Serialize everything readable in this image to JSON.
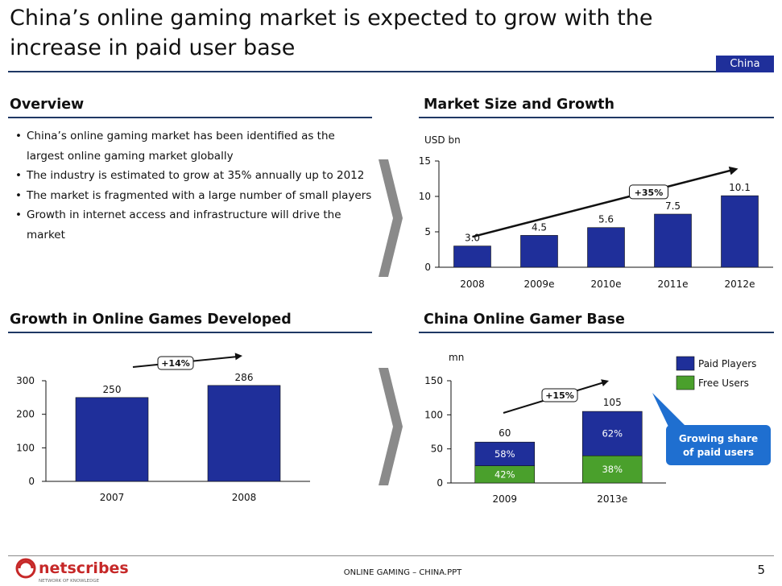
{
  "slide": {
    "title": "China’s online gaming market is expected to grow with the increase in paid user base",
    "region_tag": "China",
    "page_number": "5",
    "footer_text": "ONLINE GAMING –  CHINA.PPT",
    "logo_text": "netscribes",
    "logo_tagline": "NETWORK OF KNOWLEDGE"
  },
  "overview": {
    "heading": "Overview",
    "bullets": [
      "China’s online gaming market has been identified as the largest online gaming market globally",
      "The industry is estimated to grow at 35% annually up to 2012",
      "The market is fragmented with a large number of small players",
      "Growth in internet access and infrastructure will drive the market"
    ]
  },
  "headings": {
    "market_size": "Market Size and Growth",
    "games_developed": "Growth in Online Games Developed",
    "gamer_base": "China Online Gamer Base"
  },
  "colors": {
    "bar_blue": "#1f2f9a",
    "bar_green": "#4aa02c",
    "callout_blue": "#1f6fd0",
    "arrow_gray": "#8a8a8a"
  },
  "chart_data": [
    {
      "id": "market_size",
      "type": "bar",
      "ylabel": "USD bn",
      "categories": [
        "2008",
        "2009e",
        "2010e",
        "2011e",
        "2012e"
      ],
      "values": [
        3.0,
        4.5,
        5.6,
        7.5,
        10.1
      ],
      "value_labels": [
        "3.0",
        "4.5",
        "5.6",
        "7.5",
        "10.1"
      ],
      "ylim": [
        0,
        15
      ],
      "yticks": [
        0,
        5,
        10,
        15
      ],
      "growth_label": "+35%"
    },
    {
      "id": "games_developed",
      "type": "bar",
      "categories": [
        "2007",
        "2008"
      ],
      "values": [
        250,
        286
      ],
      "value_labels": [
        "250",
        "286"
      ],
      "ylim": [
        0,
        300
      ],
      "yticks": [
        0,
        100,
        200,
        300
      ],
      "growth_label": "+14%"
    },
    {
      "id": "gamer_base",
      "type": "bar",
      "stacked": true,
      "ylabel": "mn",
      "categories": [
        "2009",
        "2013e"
      ],
      "totals": [
        60,
        105
      ],
      "total_labels": [
        "60",
        "105"
      ],
      "series": [
        {
          "name": "Free Users",
          "shares": [
            0.42,
            0.38
          ],
          "share_labels": [
            "42%",
            "38%"
          ]
        },
        {
          "name": "Paid Players",
          "shares": [
            0.58,
            0.62
          ],
          "share_labels": [
            "58%",
            "62%"
          ]
        }
      ],
      "ylim": [
        0,
        150
      ],
      "yticks": [
        0,
        50,
        100,
        150
      ],
      "growth_label": "+15%",
      "callout": "Growing share of paid users"
    }
  ]
}
